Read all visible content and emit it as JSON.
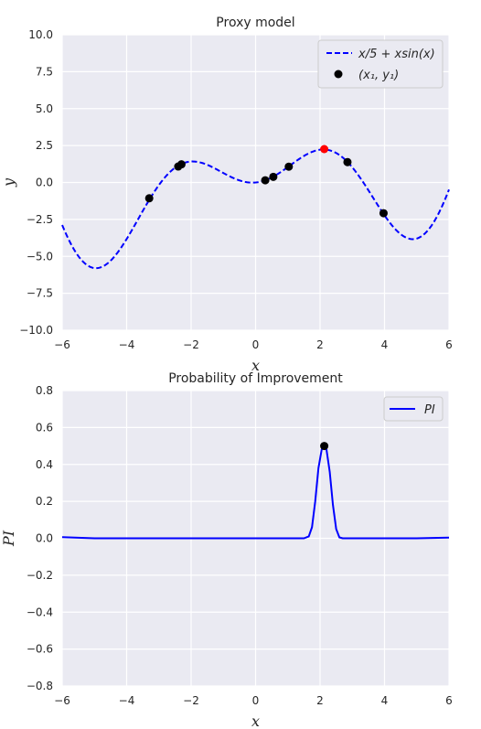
{
  "chart_data": [
    {
      "type": "line",
      "title": "Proxy model",
      "xlabel": "x",
      "ylabel": "y",
      "xlim": [
        -6,
        6
      ],
      "ylim": [
        -10,
        10
      ],
      "xticks": [
        "−6",
        "−4",
        "−2",
        "0",
        "2",
        "4",
        "6"
      ],
      "yticks": [
        "−10.0",
        "−7.5",
        "−5.0",
        "−2.5",
        "0.0",
        "2.5",
        "5.0",
        "7.5",
        "10.0"
      ],
      "grid": true,
      "legend_position": "top-right",
      "series": [
        {
          "name": "x/5 + xsin(x)",
          "style": "dashed",
          "color": "#0000ff",
          "function": "x/5 + x*sin(x)",
          "x_range": [
            -6,
            6
          ]
        },
        {
          "name": "(x₁, y₁)",
          "style": "points",
          "color": "#000000",
          "x": [
            -3.3,
            -2.4,
            -2.3,
            0.3,
            0.55,
            1.03,
            2.85,
            3.97
          ],
          "y": [
            -1.07,
            1.08,
            1.23,
            0.15,
            0.38,
            1.07,
            1.38,
            -2.08
          ]
        }
      ],
      "highlight_point": {
        "x": 2.13,
        "y": 2.26,
        "color": "#ff0000"
      }
    },
    {
      "type": "line",
      "title": "Probability of Improvement",
      "xlabel": "x",
      "ylabel": "PI",
      "xlim": [
        -6,
        6
      ],
      "ylim": [
        -0.8,
        0.8
      ],
      "xticks": [
        "−6",
        "−4",
        "−2",
        "0",
        "2",
        "4",
        "6"
      ],
      "yticks": [
        "−0.8",
        "−0.6",
        "−0.4",
        "−0.2",
        "0.0",
        "0.2",
        "0.4",
        "0.6",
        "0.8"
      ],
      "grid": true,
      "legend_position": "top-right",
      "series": [
        {
          "name": "PI",
          "style": "solid",
          "color": "#0000ff",
          "x": [
            -6,
            -5.5,
            -5,
            -4,
            -2,
            0,
            1.5,
            1.65,
            1.75,
            1.85,
            1.95,
            2.05,
            2.13,
            2.2,
            2.3,
            2.4,
            2.5,
            2.6,
            2.7,
            3,
            4,
            5,
            6
          ],
          "y": [
            0.006,
            0.003,
            0.0,
            0.0,
            0.0,
            0.0,
            0.0,
            0.01,
            0.06,
            0.2,
            0.38,
            0.48,
            0.5,
            0.48,
            0.36,
            0.18,
            0.05,
            0.005,
            0.0,
            0.0,
            0.0,
            0.0,
            0.004
          ]
        }
      ],
      "max_point": {
        "x": 2.13,
        "y": 0.5,
        "color": "#000000"
      }
    }
  ]
}
